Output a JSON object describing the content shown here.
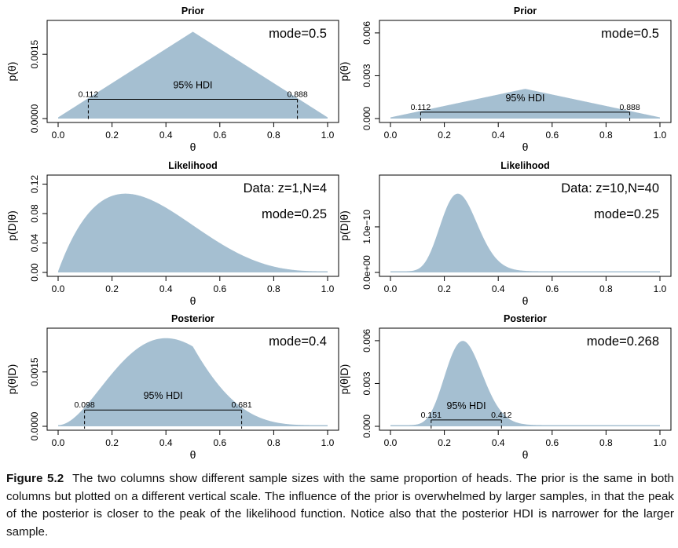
{
  "chart_data": [
    {
      "type": "area",
      "panel": "prior-left",
      "title": "Prior",
      "xlabel": "θ",
      "ylabel": "p(θ)",
      "xlim": [
        0,
        1
      ],
      "ylim": [
        0,
        0.0022
      ],
      "xticks": [
        0.0,
        0.2,
        0.4,
        0.6,
        0.8,
        1.0
      ],
      "xtick_labels": [
        "0.0",
        "0.2",
        "0.4",
        "0.6",
        "0.8",
        "1.0"
      ],
      "yticks": [
        0.0,
        0.0015
      ],
      "ytick_labels": [
        "0.0000",
        "0.0015"
      ],
      "curve": {
        "kind": "triangle",
        "peak_x": 0.5,
        "peak_y": 0.002
      },
      "annotations": [
        "mode=0.5"
      ],
      "hdi": {
        "label": "95% HDI",
        "low": 0.112,
        "high": 0.888,
        "low_label": "0.112",
        "high_label": "0.888",
        "height": 0.00045
      }
    },
    {
      "type": "area",
      "panel": "prior-right",
      "title": "Prior",
      "xlabel": "θ",
      "ylabel": "p(θ)",
      "xlim": [
        0,
        1
      ],
      "ylim": [
        0,
        0.0066
      ],
      "xticks": [
        0.0,
        0.2,
        0.4,
        0.6,
        0.8,
        1.0
      ],
      "xtick_labels": [
        "0.0",
        "0.2",
        "0.4",
        "0.6",
        "0.8",
        "1.0"
      ],
      "yticks": [
        0.0,
        0.003,
        0.006
      ],
      "ytick_labels": [
        "0.000",
        "0.003",
        "0.006"
      ],
      "curve": {
        "kind": "triangle",
        "peak_x": 0.5,
        "peak_y": 0.002
      },
      "annotations": [
        "mode=0.5"
      ],
      "hdi": {
        "label": "95% HDI",
        "low": 0.112,
        "high": 0.888,
        "low_label": "0.112",
        "high_label": "0.888",
        "height": 0.00045
      }
    },
    {
      "type": "area",
      "panel": "likelihood-left",
      "title": "Likelihood",
      "xlabel": "θ",
      "ylabel": "p(D|θ)",
      "xlim": [
        0,
        1
      ],
      "ylim": [
        0,
        0.127
      ],
      "xticks": [
        0.0,
        0.2,
        0.4,
        0.6,
        0.8,
        1.0
      ],
      "xtick_labels": [
        "0.0",
        "0.2",
        "0.4",
        "0.6",
        "0.8",
        "1.0"
      ],
      "yticks": [
        0.0,
        0.04,
        0.08,
        0.12
      ],
      "ytick_labels": [
        "0.00",
        "0.04",
        "0.08",
        "0.12"
      ],
      "curve": {
        "kind": "bernoulli",
        "z": 1,
        "N": 4
      },
      "annotations": [
        "Data: z=1,N=4",
        "mode=0.25"
      ]
    },
    {
      "type": "area",
      "panel": "likelihood-right",
      "title": "Likelihood",
      "xlabel": "θ",
      "ylabel": "p(D|θ)",
      "xlim": [
        0,
        1
      ],
      "ylim": [
        0,
        2.05e-10
      ],
      "xticks": [
        0.0,
        0.2,
        0.4,
        0.6,
        0.8,
        1.0
      ],
      "xtick_labels": [
        "0.0",
        "0.2",
        "0.4",
        "0.6",
        "0.8",
        "1.0"
      ],
      "yticks": [
        0.0,
        1e-10
      ],
      "ytick_labels": [
        "0.0e+00",
        "1.0e−10"
      ],
      "curve": {
        "kind": "bernoulli",
        "z": 10,
        "N": 40
      },
      "annotations": [
        "Data: z=10,N=40",
        "mode=0.25"
      ]
    },
    {
      "type": "area",
      "panel": "posterior-left",
      "title": "Posterior",
      "xlabel": "θ",
      "ylabel": "p(θ|D)",
      "xlim": [
        0,
        1
      ],
      "ylim": [
        0,
        0.0026
      ],
      "xticks": [
        0.0,
        0.2,
        0.4,
        0.6,
        0.8,
        1.0
      ],
      "xtick_labels": [
        "0.0",
        "0.2",
        "0.4",
        "0.6",
        "0.8",
        "1.0"
      ],
      "yticks": [
        0.0,
        0.0015
      ],
      "ytick_labels": [
        "0.0000",
        "0.0015"
      ],
      "curve": {
        "kind": "posterior",
        "z": 1,
        "N": 4,
        "mode": 0.4,
        "peak_y": 0.0024
      },
      "annotations": [
        "mode=0.4"
      ],
      "hdi": {
        "label": "95% HDI",
        "low": 0.098,
        "high": 0.681,
        "low_label": "0.098",
        "high_label": "0.681",
        "height": 0.00045
      }
    },
    {
      "type": "area",
      "panel": "posterior-right",
      "title": "Posterior",
      "xlabel": "θ",
      "ylabel": "p(θ|D)",
      "xlim": [
        0,
        1
      ],
      "ylim": [
        0,
        0.0066
      ],
      "xticks": [
        0.0,
        0.2,
        0.4,
        0.6,
        0.8,
        1.0
      ],
      "xtick_labels": [
        "0.0",
        "0.2",
        "0.4",
        "0.6",
        "0.8",
        "1.0"
      ],
      "yticks": [
        0.0,
        0.003,
        0.006
      ],
      "ytick_labels": [
        "0.000",
        "0.003",
        "0.006"
      ],
      "curve": {
        "kind": "posterior",
        "z": 10,
        "N": 40,
        "mode": 0.268,
        "peak_y": 0.0059
      },
      "annotations": [
        "mode=0.268"
      ],
      "hdi": {
        "label": "95% HDI",
        "low": 0.151,
        "high": 0.412,
        "low_label": "0.151",
        "high_label": "0.412",
        "height": 0.00045
      }
    }
  ],
  "caption": {
    "label": "Figure 5.2",
    "text": "The two columns show different sample sizes with the same proportion of heads. The prior is the same in both columns but plotted on a different vertical scale. The influence of the prior is overwhelmed by larger samples, in that the peak of the posterior is closer to the peak of the likelihood function. Notice also that the posterior HDI is narrower for the larger sample."
  },
  "colors": {
    "fill": "#a5bfd1",
    "axis": "#000000",
    "text": "#000000"
  }
}
